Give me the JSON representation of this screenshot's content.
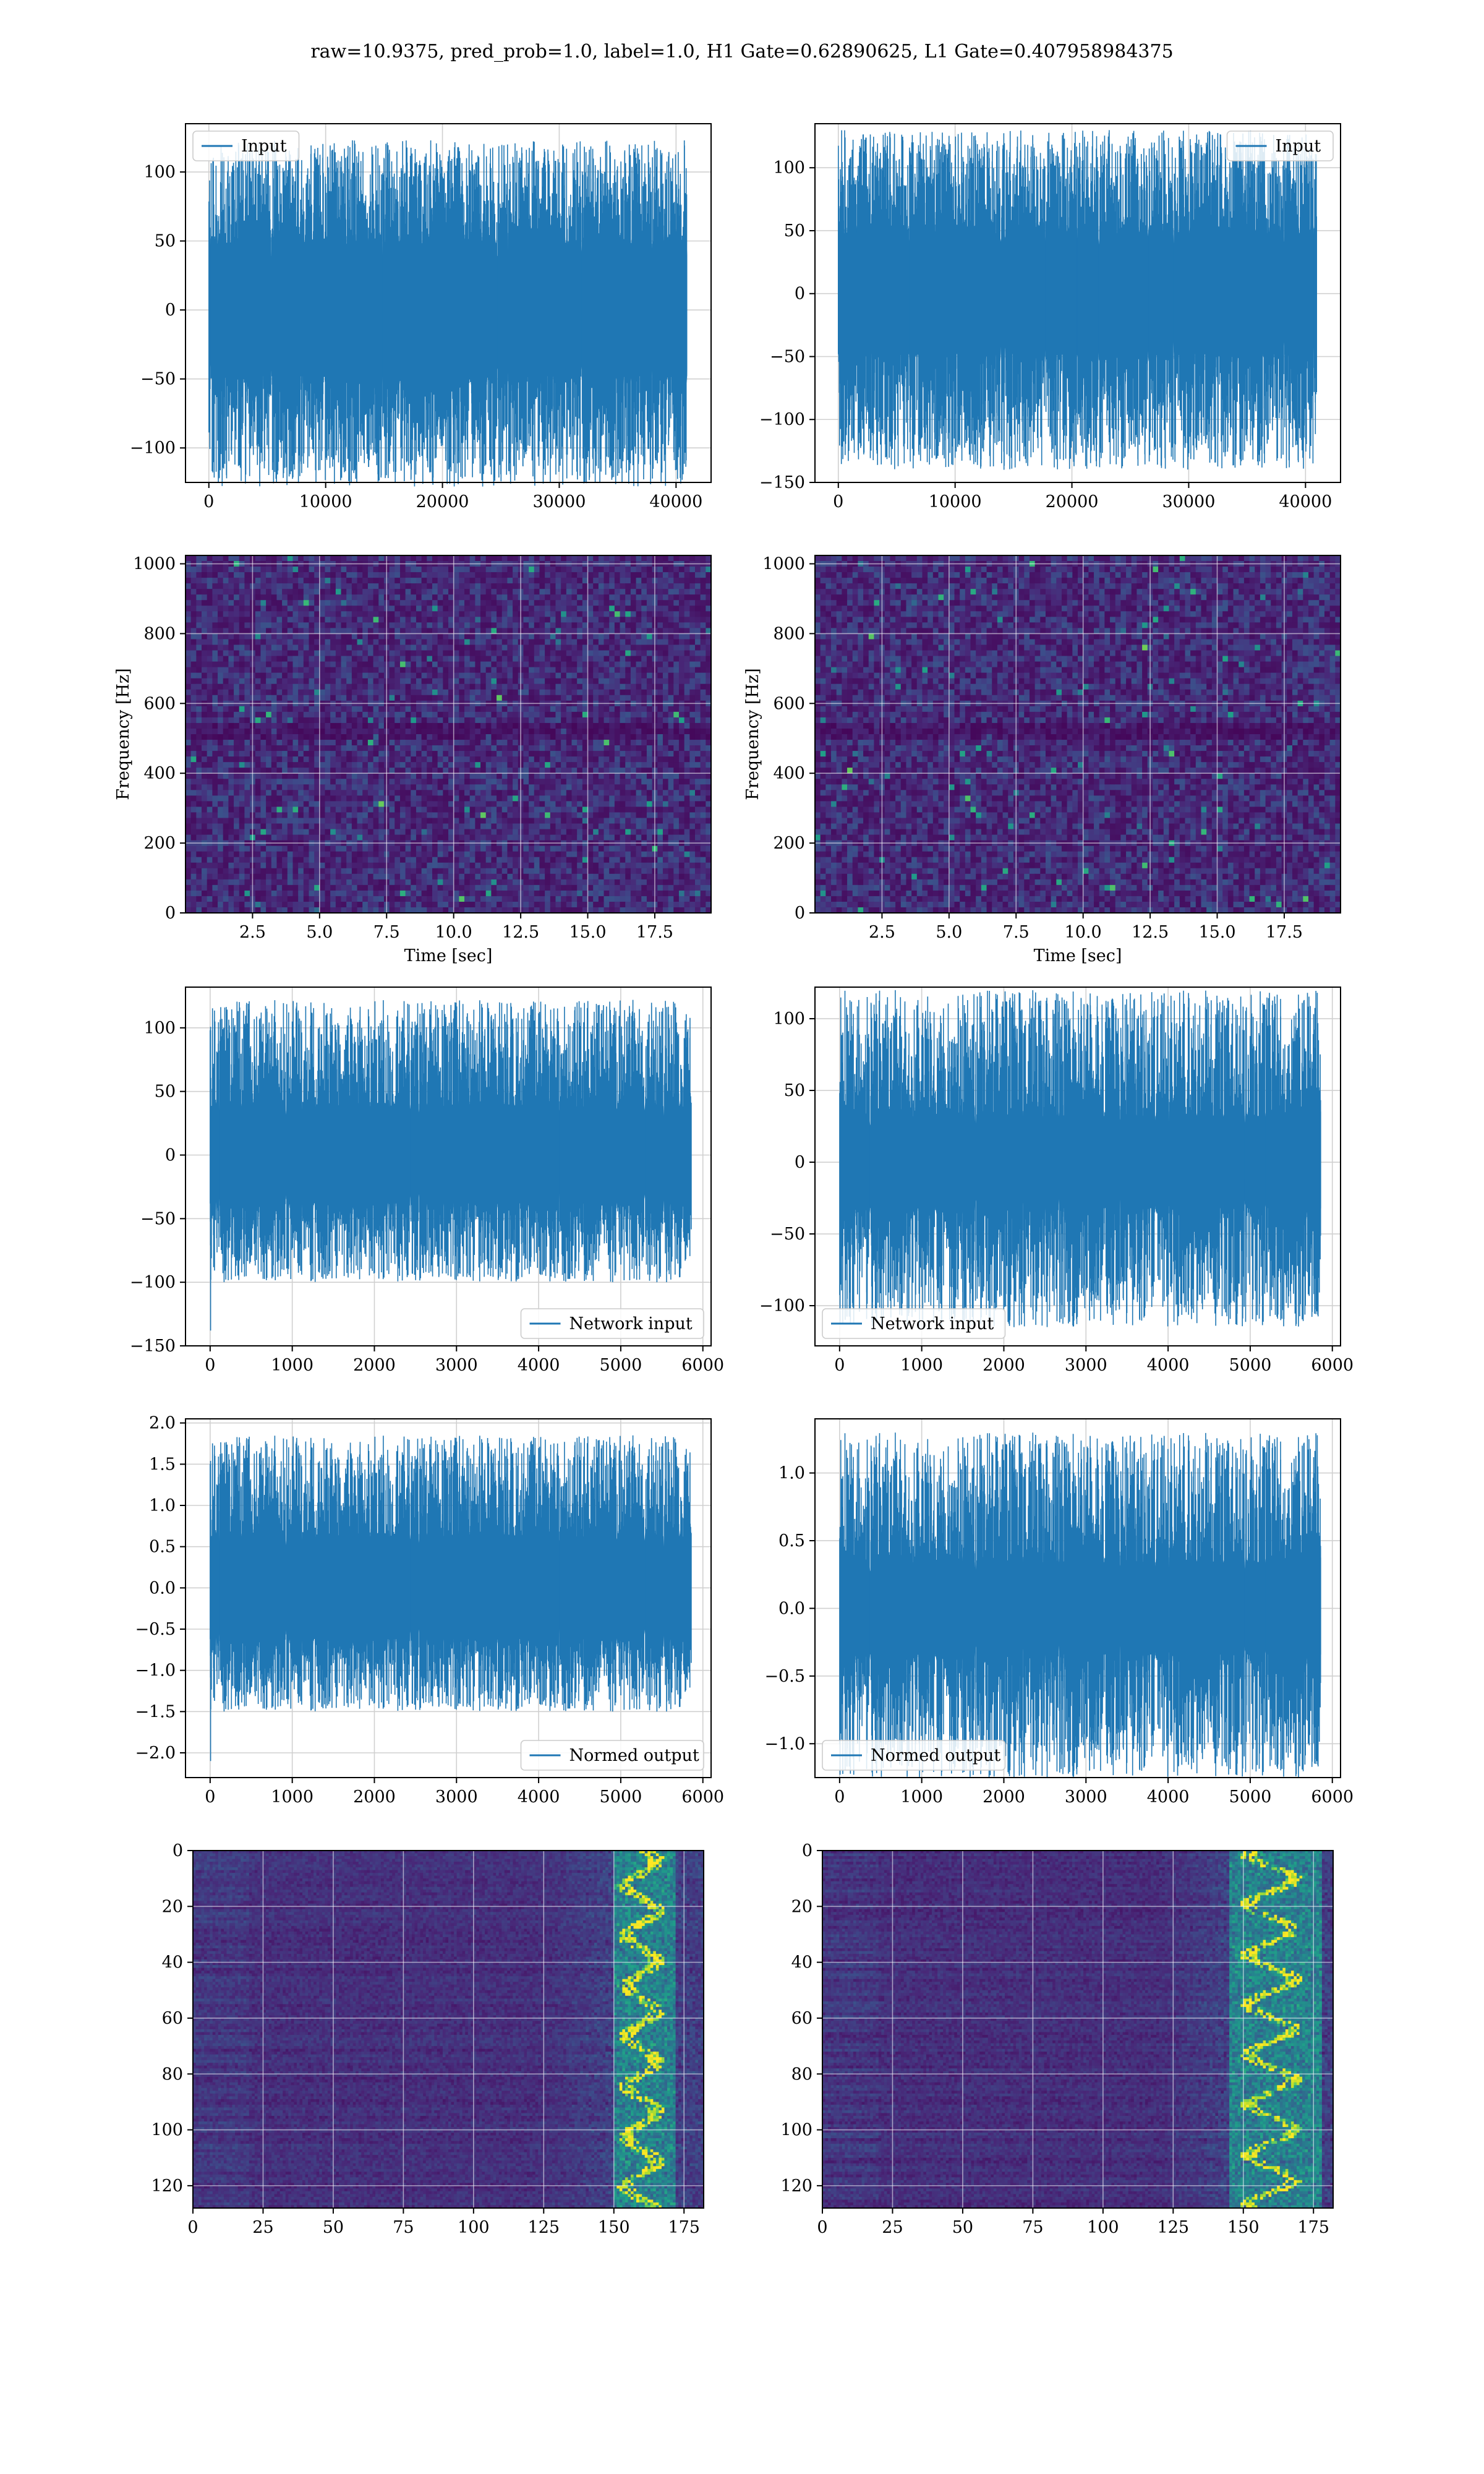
{
  "figure": {
    "title": "raw=10.9375, pred_prob=1.0, label=1.0, H1 Gate=0.62890625, L1 Gate=0.407958984375"
  },
  "colors": {
    "line": "#1f77b4",
    "grid": "#d0d0d0",
    "viridis_dark": "#440154",
    "viridis_bright": "#35b779",
    "viridis_yellow": "#fde725"
  },
  "chart_data": [
    {
      "id": "h1-input",
      "type": "line",
      "series": [
        {
          "name": "Input"
        }
      ],
      "xlim": [
        -2000,
        43000
      ],
      "ylim": [
        -125,
        135
      ],
      "xticks": [
        0,
        10000,
        20000,
        30000,
        40000
      ],
      "xtick_labels": [
        "0",
        "10000",
        "20000",
        "30000",
        "40000"
      ],
      "yticks": [
        -100,
        -50,
        0,
        50,
        100
      ],
      "ytick_labels": [
        "−100",
        "−50",
        "0",
        "50",
        "100"
      ],
      "x_range": [
        0,
        40960
      ],
      "band": 48,
      "peak_max": 123,
      "trough_min": -128,
      "seed": 11,
      "legend": "upper left",
      "grid": true
    },
    {
      "id": "l1-input",
      "type": "line",
      "series": [
        {
          "name": "Input"
        }
      ],
      "xlim": [
        -2000,
        43000
      ],
      "ylim": [
        -150,
        135
      ],
      "xticks": [
        0,
        10000,
        20000,
        30000,
        40000
      ],
      "xtick_labels": [
        "0",
        "10000",
        "20000",
        "30000",
        "40000"
      ],
      "yticks": [
        -150,
        -100,
        -50,
        0,
        50,
        100
      ],
      "ytick_labels": [
        "−150",
        "−100",
        "−50",
        "0",
        "50",
        "100"
      ],
      "x_range": [
        0,
        40960
      ],
      "band": 48,
      "peak_max": 130,
      "trough_min": -140,
      "seed": 23,
      "legend": "upper right",
      "grid": true
    },
    {
      "id": "h1-spectrogram",
      "type": "heatmap",
      "xlim": [
        0,
        19.6
      ],
      "ylim": [
        0,
        1024
      ],
      "xticks": [
        2.5,
        5.0,
        7.5,
        10.0,
        12.5,
        15.0,
        17.5
      ],
      "xtick_labels": [
        "2.5",
        "5.0",
        "7.5",
        "10.0",
        "12.5",
        "15.0",
        "17.5"
      ],
      "yticks": [
        0,
        200,
        400,
        600,
        800,
        1000
      ],
      "ytick_labels": [
        "0",
        "200",
        "400",
        "600",
        "800",
        "1000"
      ],
      "xlabel": "Time [sec]",
      "ylabel": "Frequency [Hz]",
      "colormap": "viridis",
      "seed": 5,
      "grid": true
    },
    {
      "id": "l1-spectrogram",
      "type": "heatmap",
      "xlim": [
        0,
        19.6
      ],
      "ylim": [
        0,
        1024
      ],
      "xticks": [
        2.5,
        5.0,
        7.5,
        10.0,
        12.5,
        15.0,
        17.5
      ],
      "xtick_labels": [
        "2.5",
        "5.0",
        "7.5",
        "10.0",
        "12.5",
        "15.0",
        "17.5"
      ],
      "yticks": [
        0,
        200,
        400,
        600,
        800,
        1000
      ],
      "ytick_labels": [
        "0",
        "200",
        "400",
        "600",
        "800",
        "1000"
      ],
      "xlabel": "Time [sec]",
      "ylabel": "Frequency [Hz]",
      "colormap": "viridis",
      "seed": 9,
      "grid": true
    },
    {
      "id": "h1-network-input",
      "type": "line",
      "series": [
        {
          "name": "Network input"
        }
      ],
      "xlim": [
        -300,
        6100
      ],
      "ylim": [
        -150,
        132
      ],
      "xticks": [
        0,
        1000,
        2000,
        3000,
        4000,
        5000,
        6000
      ],
      "xtick_labels": [
        "0",
        "1000",
        "2000",
        "3000",
        "4000",
        "5000",
        "6000"
      ],
      "yticks": [
        -150,
        -100,
        -50,
        0,
        50,
        100
      ],
      "ytick_labels": [
        "−150",
        "−100",
        "−50",
        "0",
        "50",
        "100"
      ],
      "x_range": [
        0,
        5860
      ],
      "band": 38,
      "peak_max": 122,
      "trough_min": -100,
      "spike_start": -138,
      "seed": 31,
      "legend": "lower right",
      "grid": true
    },
    {
      "id": "l1-network-input",
      "type": "line",
      "series": [
        {
          "name": "Network input"
        }
      ],
      "xlim": [
        -300,
        6100
      ],
      "ylim": [
        -128,
        122
      ],
      "xticks": [
        0,
        1000,
        2000,
        3000,
        4000,
        5000,
        6000
      ],
      "xtick_labels": [
        "0",
        "1000",
        "2000",
        "3000",
        "4000",
        "5000",
        "6000"
      ],
      "yticks": [
        -100,
        -50,
        0,
        50,
        100
      ],
      "ytick_labels": [
        "−100",
        "−50",
        "0",
        "50",
        "100"
      ],
      "x_range": [
        0,
        5860
      ],
      "band": 32,
      "peak_max": 120,
      "trough_min": -115,
      "seed": 47,
      "legend": "lower left",
      "grid": true
    },
    {
      "id": "h1-normed-output",
      "type": "line",
      "series": [
        {
          "name": "Normed output"
        }
      ],
      "xlim": [
        -300,
        6100
      ],
      "ylim": [
        -2.3,
        2.05
      ],
      "xticks": [
        0,
        1000,
        2000,
        3000,
        4000,
        5000,
        6000
      ],
      "xtick_labels": [
        "0",
        "1000",
        "2000",
        "3000",
        "4000",
        "5000",
        "6000"
      ],
      "yticks": [
        -2.0,
        -1.5,
        -1.0,
        -0.5,
        0.0,
        0.5,
        1.0,
        1.5,
        2.0
      ],
      "ytick_labels": [
        "−2.0",
        "−1.5",
        "−1.0",
        "−0.5",
        "0.0",
        "0.5",
        "1.0",
        "1.5",
        "2.0"
      ],
      "x_range": [
        0,
        5860
      ],
      "band": 0.62,
      "peak_max": 1.85,
      "trough_min": -1.5,
      "spike_start": -2.1,
      "seed": 31,
      "legend": "lower right",
      "grid": true
    },
    {
      "id": "l1-normed-output",
      "type": "line",
      "series": [
        {
          "name": "Normed output"
        }
      ],
      "xlim": [
        -300,
        6100
      ],
      "ylim": [
        -1.25,
        1.4
      ],
      "xticks": [
        0,
        1000,
        2000,
        3000,
        4000,
        5000,
        6000
      ],
      "xtick_labels": [
        "0",
        "1000",
        "2000",
        "3000",
        "4000",
        "5000",
        "6000"
      ],
      "yticks": [
        -1.0,
        -0.5,
        0.0,
        0.5,
        1.0
      ],
      "ytick_labels": [
        "−1.0",
        "−0.5",
        "0.0",
        "0.5",
        "1.0"
      ],
      "x_range": [
        0,
        5860
      ],
      "band": 0.34,
      "peak_max": 1.3,
      "trough_min": -1.25,
      "seed": 47,
      "legend": "lower left",
      "grid": true
    },
    {
      "id": "h1-feature-map",
      "type": "heatmap",
      "xlim": [
        0,
        182
      ],
      "ylim": [
        128,
        0
      ],
      "xticks": [
        0,
        25,
        50,
        75,
        100,
        125,
        150,
        175
      ],
      "xtick_labels": [
        "0",
        "25",
        "50",
        "75",
        "100",
        "125",
        "150",
        "175"
      ],
      "yticks": [
        0,
        20,
        40,
        60,
        80,
        100,
        120
      ],
      "ytick_labels": [
        "0",
        "20",
        "40",
        "60",
        "80",
        "100",
        "120"
      ],
      "colormap": "viridis",
      "hot_band": [
        150,
        172
      ],
      "seed": 13,
      "grid": true
    },
    {
      "id": "l1-feature-map",
      "type": "heatmap",
      "xlim": [
        0,
        182
      ],
      "ylim": [
        128,
        0
      ],
      "xticks": [
        0,
        25,
        50,
        75,
        100,
        125,
        150,
        175
      ],
      "xtick_labels": [
        "0",
        "25",
        "50",
        "75",
        "100",
        "125",
        "150",
        "175"
      ],
      "yticks": [
        0,
        20,
        40,
        60,
        80,
        100,
        120
      ],
      "ytick_labels": [
        "0",
        "20",
        "40",
        "60",
        "80",
        "100",
        "120"
      ],
      "colormap": "viridis",
      "hot_band": [
        145,
        178
      ],
      "seed": 17,
      "grid": true
    }
  ]
}
